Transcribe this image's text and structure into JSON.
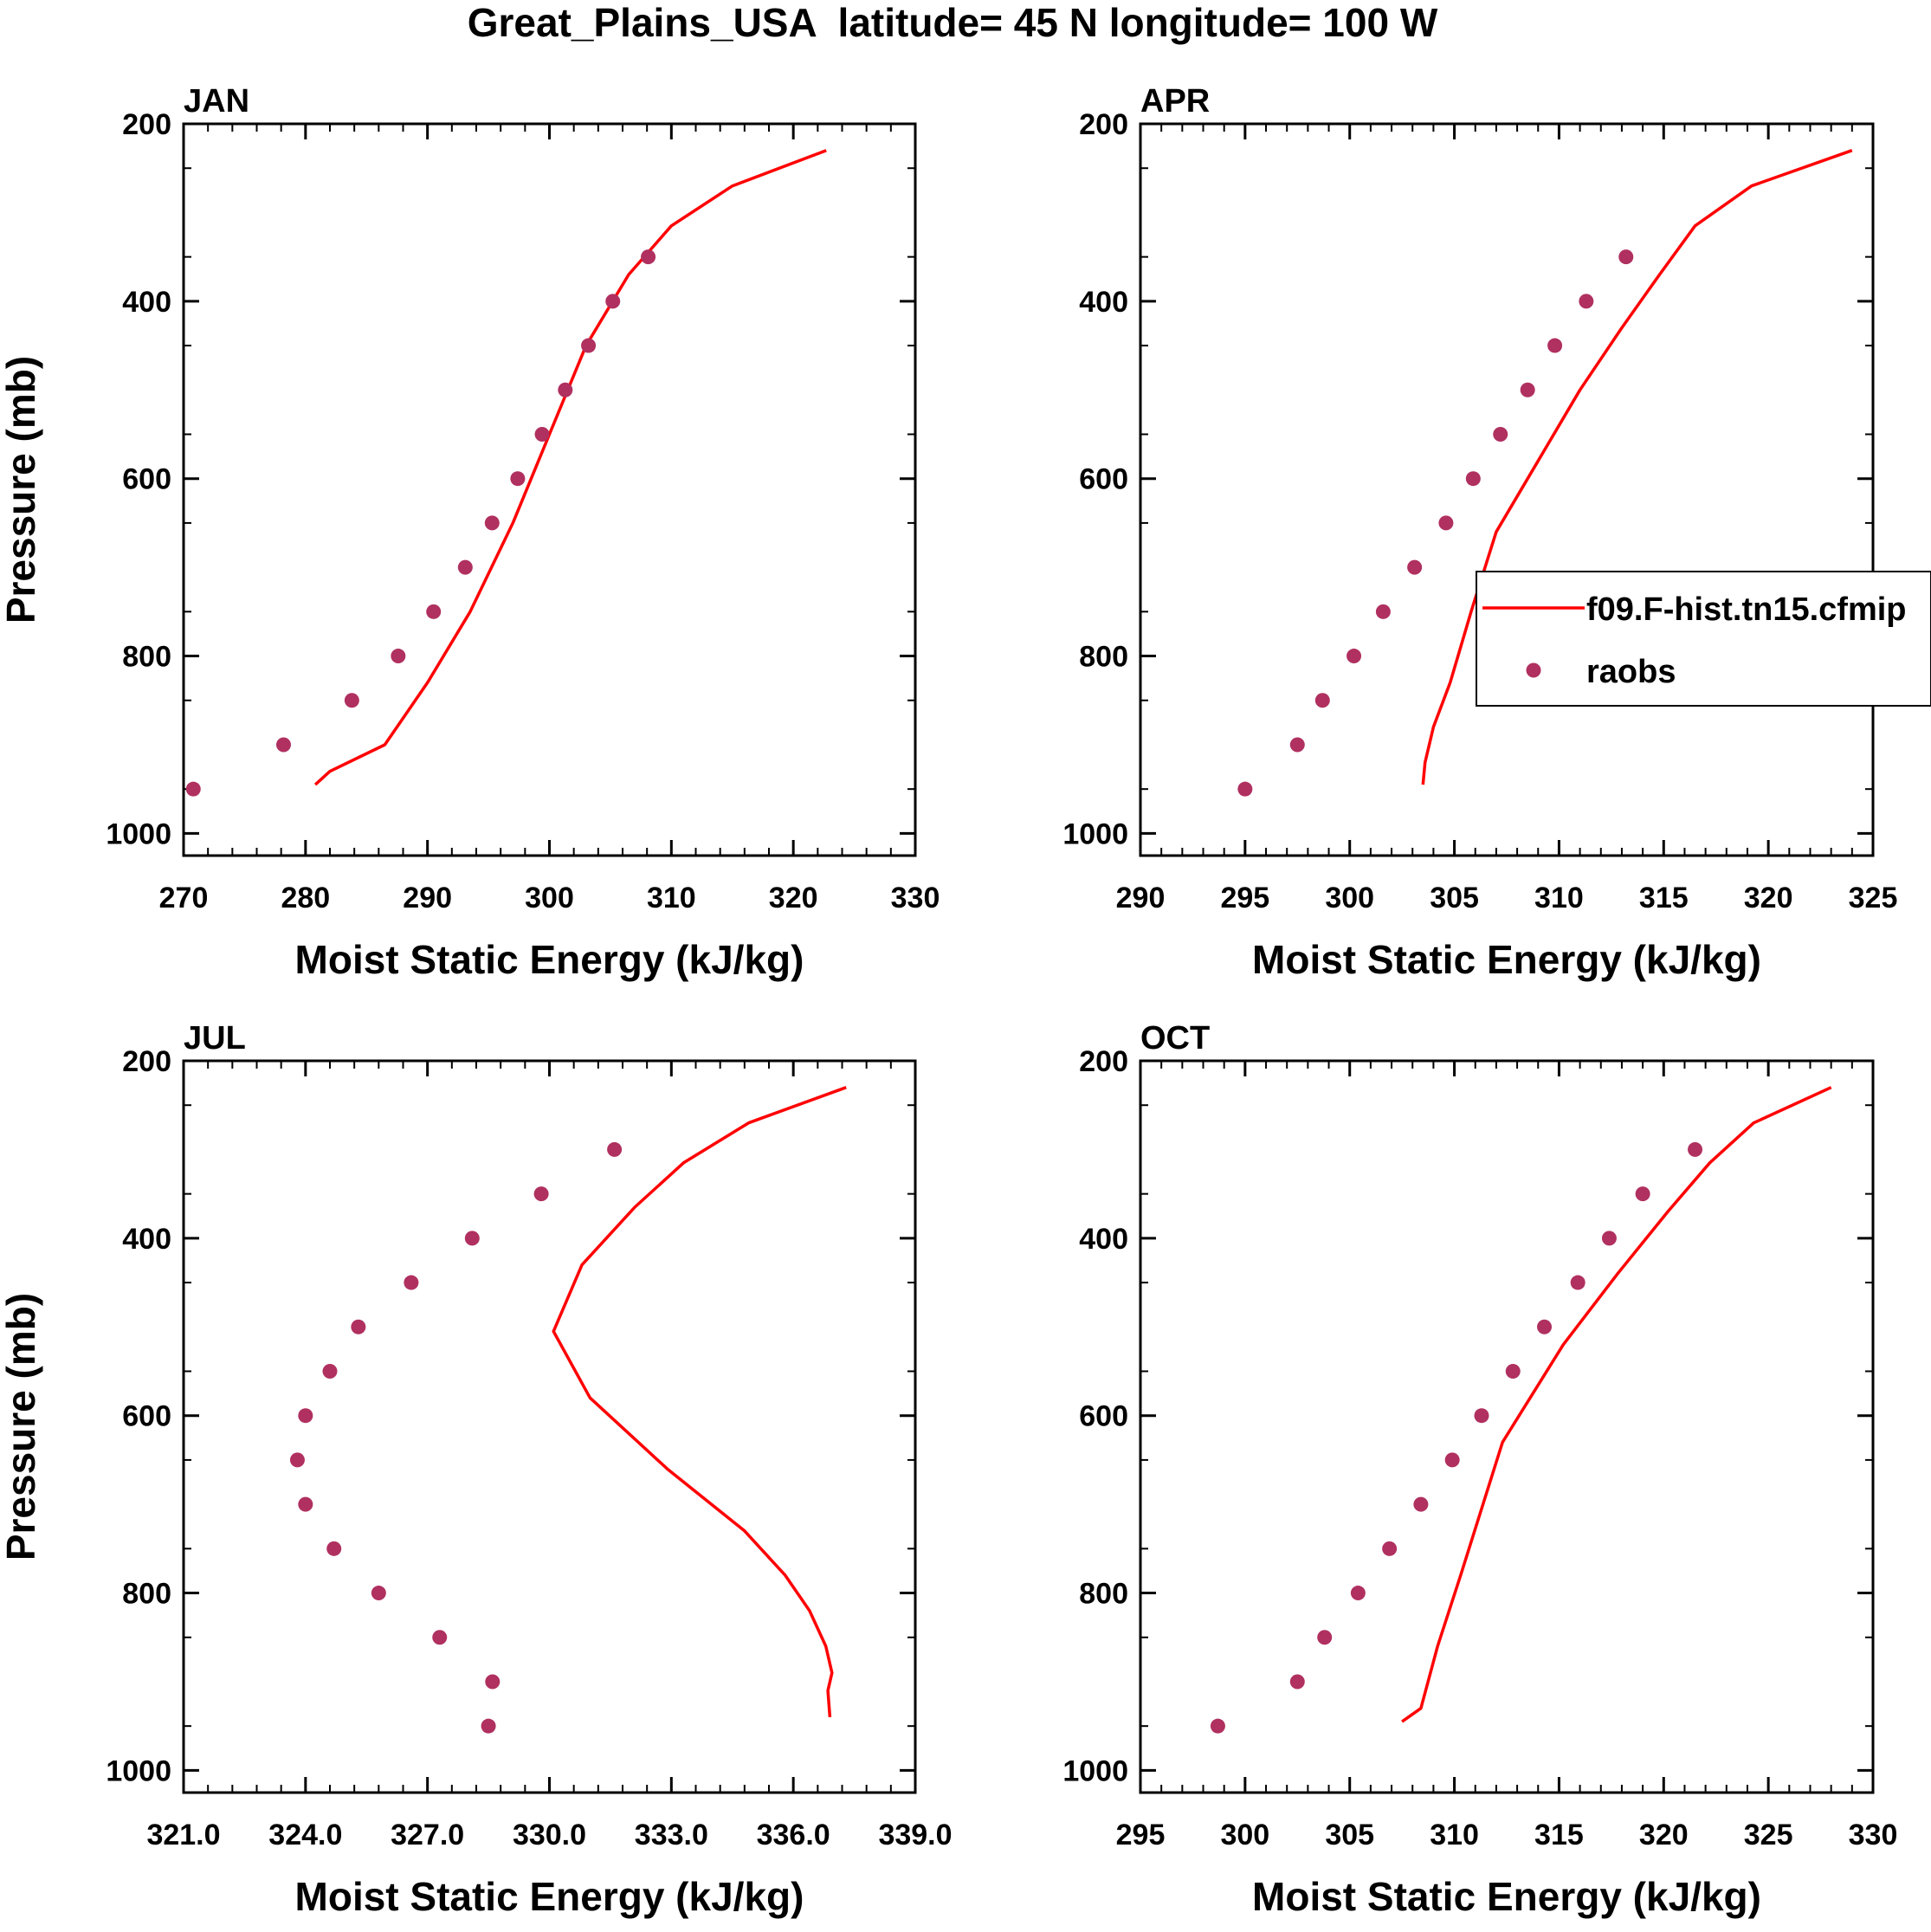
{
  "figure_title": "Great_Plains_USA  latitude= 45 N longitude= 100 W",
  "colors": {
    "model": "#ff0000",
    "obs": "#b03060",
    "axis": "#000000"
  },
  "legend": {
    "model_label": "f09.F-hist.tn15.cfmip",
    "obs_label": "raobs"
  },
  "chart_data": [
    {
      "type": "line",
      "panel": "JAN",
      "title": "JAN",
      "xlabel": "Moist Static Energy (kJ/kg)",
      "ylabel": "Pressure (mb)",
      "xlim": [
        270,
        330
      ],
      "xticks": [
        270,
        280,
        290,
        300,
        310,
        320,
        330
      ],
      "xtick_labels": [
        "270",
        "280",
        "290",
        "300",
        "310",
        "320",
        "330"
      ],
      "ylim": [
        200,
        1025
      ],
      "yticks": [
        200,
        400,
        600,
        800,
        1000
      ],
      "ytick_labels": [
        "200",
        "400",
        "600",
        "800",
        "1000"
      ],
      "series": [
        {
          "name": "f09.F-hist.tn15.cfmip",
          "kind": "line",
          "x": [
            322.7,
            315,
            310,
            306.5,
            303,
            300,
            297,
            293.5,
            290,
            286.5,
            282,
            280.8
          ],
          "y": [
            230,
            270,
            315,
            370,
            450,
            550,
            650,
            750,
            830,
            900,
            930,
            945
          ]
        },
        {
          "name": "raobs",
          "kind": "scatter",
          "x": [
            308.1,
            305.2,
            303.2,
            301.3,
            299.4,
            297.4,
            295.3,
            293.1,
            290.5,
            287.6,
            283.8,
            278.2,
            270.8
          ],
          "y": [
            350,
            400,
            450,
            500,
            550,
            600,
            650,
            700,
            750,
            800,
            850,
            900,
            950
          ]
        }
      ]
    },
    {
      "type": "line",
      "panel": "APR",
      "title": "APR",
      "xlabel": "Moist Static Energy (kJ/kg)",
      "ylabel": "",
      "xlim": [
        290,
        325
      ],
      "xticks": [
        290,
        295,
        300,
        305,
        310,
        315,
        320,
        325
      ],
      "xtick_labels": [
        "290",
        "295",
        "300",
        "305",
        "310",
        "315",
        "320",
        "325"
      ],
      "ylim": [
        200,
        1025
      ],
      "yticks": [
        200,
        400,
        600,
        800,
        1000
      ],
      "ytick_labels": [
        "200",
        "400",
        "600",
        "800",
        "1000"
      ],
      "legend": true,
      "series": [
        {
          "name": "f09.F-hist.tn15.cfmip",
          "kind": "line",
          "x": [
            324,
            319.2,
            316.5,
            314.8,
            313,
            311,
            309,
            307,
            305.8,
            304.8,
            304,
            303.6,
            303.5
          ],
          "y": [
            230,
            270,
            315,
            370,
            430,
            500,
            580,
            660,
            750,
            830,
            880,
            920,
            945
          ]
        },
        {
          "name": "raobs",
          "kind": "scatter",
          "x": [
            313.2,
            311.3,
            309.8,
            308.5,
            307.2,
            305.9,
            304.6,
            303.1,
            301.6,
            300.2,
            298.7,
            297.5,
            295
          ],
          "y": [
            350,
            400,
            450,
            500,
            550,
            600,
            650,
            700,
            750,
            800,
            850,
            900,
            950
          ]
        }
      ]
    },
    {
      "type": "line",
      "panel": "JUL",
      "title": "JUL",
      "xlabel": "Moist Static Energy (kJ/kg)",
      "ylabel": "Pressure (mb)",
      "xlim": [
        321,
        339
      ],
      "xticks": [
        321,
        324,
        327,
        330,
        333,
        336,
        339
      ],
      "xtick_labels": [
        "321.0",
        "324.0",
        "327.0",
        "330.0",
        "333.0",
        "336.0",
        "339.0"
      ],
      "ylim": [
        200,
        1025
      ],
      "yticks": [
        200,
        400,
        600,
        800,
        1000
      ],
      "ytick_labels": [
        "200",
        "400",
        "600",
        "800",
        "1000"
      ],
      "series": [
        {
          "name": "f09.F-hist.tn15.cfmip",
          "kind": "line",
          "x": [
            337.3,
            334.9,
            333.3,
            332.1,
            330.8,
            330.1,
            331,
            332.9,
            334.8,
            335.8,
            336.4,
            336.8,
            336.95,
            336.85,
            336.9
          ],
          "y": [
            230,
            270,
            315,
            365,
            430,
            505,
            580,
            660,
            730,
            780,
            820,
            860,
            890,
            910,
            940
          ]
        },
        {
          "name": "raobs",
          "kind": "scatter",
          "x": [
            331.6,
            329.8,
            328.1,
            326.6,
            325.3,
            324.6,
            324.0,
            323.8,
            324.0,
            324.7,
            325.8,
            327.3,
            328.6,
            328.5
          ],
          "y": [
            300,
            350,
            400,
            450,
            500,
            550,
            600,
            650,
            700,
            750,
            800,
            850,
            900,
            950
          ]
        }
      ]
    },
    {
      "type": "line",
      "panel": "OCT",
      "title": "OCT",
      "xlabel": "Moist Static Energy (kJ/kg)",
      "ylabel": "",
      "xlim": [
        295,
        330
      ],
      "xticks": [
        295,
        300,
        305,
        310,
        315,
        320,
        325,
        330
      ],
      "xtick_labels": [
        "295",
        "300",
        "305",
        "310",
        "315",
        "320",
        "325",
        "330"
      ],
      "ylim": [
        200,
        1025
      ],
      "yticks": [
        200,
        400,
        600,
        800,
        1000
      ],
      "ytick_labels": [
        "200",
        "400",
        "600",
        "800",
        "1000"
      ],
      "series": [
        {
          "name": "f09.F-hist.tn15.cfmip",
          "kind": "line",
          "x": [
            328,
            324.3,
            322.2,
            320.2,
            317.8,
            315.2,
            312.3,
            310.3,
            309.2,
            308.4,
            307.5
          ],
          "y": [
            230,
            270,
            315,
            370,
            440,
            520,
            630,
            780,
            860,
            930,
            945
          ]
        },
        {
          "name": "raobs",
          "kind": "scatter",
          "x": [
            321.5,
            319,
            317.4,
            315.9,
            314.3,
            312.8,
            311.3,
            309.9,
            308.4,
            306.9,
            305.4,
            303.8,
            302.5,
            298.7
          ],
          "y": [
            300,
            350,
            400,
            450,
            500,
            550,
            600,
            650,
            700,
            750,
            800,
            850,
            900,
            950
          ]
        }
      ]
    }
  ]
}
